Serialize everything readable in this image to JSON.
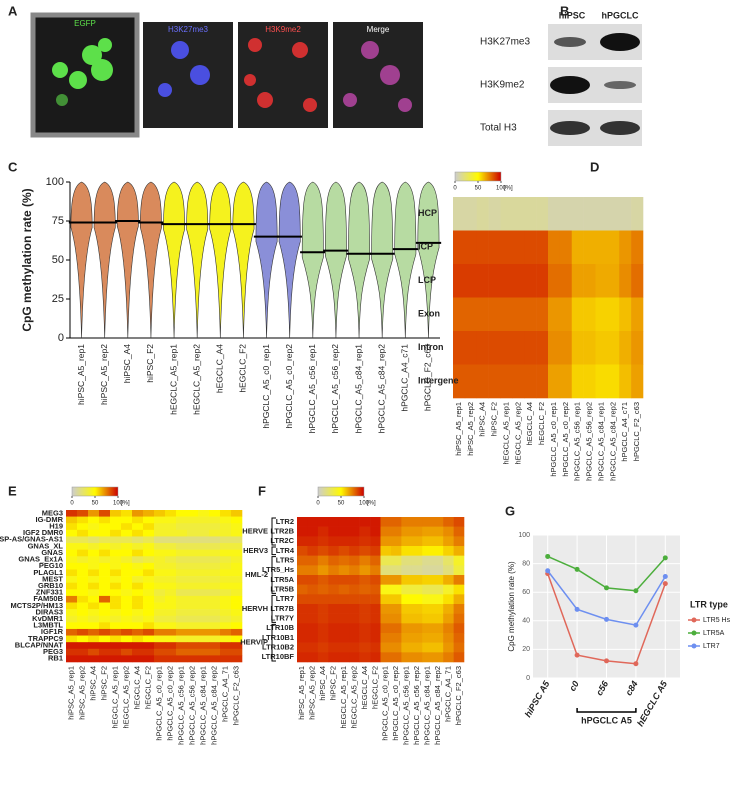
{
  "panel_labels": [
    "A",
    "B",
    "C",
    "D",
    "E",
    "F",
    "G"
  ],
  "image_panel": {
    "labels": [
      "EGFP",
      "H3K27me3",
      "H3K9me2",
      "Merge"
    ]
  },
  "blot_panel": {
    "columns": [
      "hiPSC",
      "hPGCLC"
    ],
    "rows": [
      "H3K27me3",
      "H3K9me2",
      "Total H3"
    ]
  },
  "chart_data": [
    {
      "type": "violin",
      "y_label": "CpG methylation rate (%)",
      "categories": [
        "hiPSC_A5_rep1",
        "hiPSC_A5_rep2",
        "hiPSC_A4",
        "hiPSC_F2",
        "hEGCLC_A5_rep1",
        "hEGCLC_A5_rep2",
        "hEGCLC_A4",
        "hEGCLC_F2",
        "hPGCLC_A5_c0_rep1",
        "hPGCLC_A5_c0_rep2",
        "hPGCLC_A5_c56_rep1",
        "hPGCLC_A5_c56_rep2",
        "hPGCLC_A5_c84_rep1",
        "hPGCLC_A5_c84_rep2",
        "hPGCLC_A4_c71",
        "hPGCLC_F2_c63"
      ],
      "values": [
        74,
        74,
        75,
        74,
        73,
        73,
        73,
        73,
        65,
        65,
        55,
        56,
        54,
        54,
        57,
        61
      ],
      "colors": [
        "#d98a5c",
        "#d98a5c",
        "#d98a5c",
        "#d98a5c",
        "#f5f21e",
        "#f5f21e",
        "#f5f21e",
        "#f5f21e",
        "#8a8fd8",
        "#8a8fd8",
        "#b7dba2",
        "#b7dba2",
        "#b7dba2",
        "#b7dba2",
        "#b7dba2",
        "#b7dba2"
      ],
      "ylim": [
        0,
        100
      ],
      "yticks": [
        0,
        25,
        50,
        75,
        100
      ]
    },
    {
      "type": "heatmap",
      "colorbar_ticks": [
        0,
        50,
        100
      ],
      "colorbar_unit": "[%]",
      "rows": [
        "HCP",
        "ICP",
        "LCP",
        "Exon",
        "Intron",
        "Intergene"
      ],
      "columns": [
        "hiPSC_A5_rep1",
        "hiPSC_A5_rep2",
        "hiPSC_A4",
        "hiPSC_F2",
        "hEGCLC_A5_rep1",
        "hEGCLC_A5_rep2",
        "hEGCLC_A4",
        "hEGCLC_F2",
        "hPGCLC_A5_c0_rep1",
        "hPGCLC_A5_c0_rep2",
        "hPGCLC_A5_c56_rep1",
        "hPGCLC_A5_c56_rep2",
        "hPGCLC_A5_c84_rep1",
        "hPGCLC_A5_c84_rep2",
        "hPGCLC_A4_c71",
        "hPGCLC_F2_c63"
      ],
      "values": [
        [
          10,
          10,
          12,
          10,
          12,
          12,
          12,
          12,
          8,
          8,
          8,
          8,
          8,
          8,
          8,
          10
        ],
        [
          85,
          85,
          85,
          85,
          85,
          85,
          85,
          85,
          75,
          75,
          65,
          65,
          65,
          65,
          70,
          75
        ],
        [
          88,
          88,
          88,
          88,
          88,
          88,
          88,
          88,
          78,
          78,
          68,
          68,
          66,
          66,
          72,
          78
        ],
        [
          80,
          80,
          80,
          80,
          80,
          80,
          80,
          80,
          70,
          70,
          60,
          60,
          58,
          58,
          62,
          68
        ],
        [
          85,
          85,
          85,
          85,
          85,
          85,
          85,
          85,
          72,
          72,
          62,
          62,
          60,
          60,
          65,
          70
        ],
        [
          82,
          82,
          82,
          82,
          82,
          82,
          82,
          82,
          68,
          68,
          58,
          58,
          56,
          56,
          62,
          68
        ]
      ]
    },
    {
      "type": "heatmap",
      "colorbar_ticks": [
        0,
        50,
        100
      ],
      "colorbar_unit": "[%]",
      "rows": [
        "MEG3",
        "IG-DMR",
        "H19",
        "IGF2 DMR0",
        "NESP-AS/GNAS-AS1",
        "GNAS_XL",
        "GNAS",
        "GNAS_Ex1A",
        "PEG10",
        "PLAGL1",
        "MEST",
        "GRB10",
        "ZNF331",
        "FAM50B",
        "MCTS2P/HM13",
        "DIRAS3",
        "KvDMR1",
        "L3MBTL",
        "IGF1R",
        "TRAPPC9",
        "BLCAP/NNAT",
        "PEG3",
        "RB1"
      ],
      "columns": [
        "hiPSC_A5_rep1",
        "hiPSC_A5_rep2",
        "hiPSC_A4",
        "hiPSC_F2",
        "hEGCLC_A5_rep1",
        "hEGCLC_A5_rep2",
        "hEGCLC_A4",
        "hEGCLC_F2",
        "hPGCLC_A5_c0_rep1",
        "hPGCLC_A5_c0_rep2",
        "hPGCLC_A5_c56_rep1",
        "hPGCLC_A5_c56_rep2",
        "hPGCLC_A5_c84_rep1",
        "hPGCLC_A5_c84_rep2",
        "hPGCLC_A4_71",
        "hPGCLC_F2_c63"
      ],
      "values": [
        [
          90,
          85,
          70,
          85,
          60,
          55,
          70,
          65,
          60,
          55,
          50,
          50,
          45,
          50,
          55,
          60
        ],
        [
          60,
          55,
          50,
          55,
          50,
          50,
          55,
          50,
          45,
          45,
          40,
          40,
          40,
          40,
          45,
          50
        ],
        [
          55,
          50,
          45,
          50,
          50,
          55,
          50,
          55,
          40,
          40,
          35,
          35,
          35,
          35,
          40,
          45
        ],
        [
          50,
          55,
          50,
          50,
          55,
          50,
          55,
          50,
          40,
          40,
          40,
          35,
          35,
          40,
          40,
          45
        ],
        [
          30,
          30,
          25,
          30,
          30,
          30,
          25,
          30,
          20,
          20,
          20,
          20,
          20,
          20,
          25,
          25
        ],
        [
          45,
          45,
          40,
          45,
          40,
          45,
          40,
          45,
          35,
          35,
          30,
          30,
          30,
          30,
          35,
          35
        ],
        [
          50,
          55,
          50,
          55,
          50,
          50,
          55,
          50,
          45,
          45,
          40,
          40,
          40,
          40,
          45,
          45
        ],
        [
          45,
          40,
          45,
          40,
          45,
          40,
          30,
          35,
          40,
          35,
          30,
          30,
          30,
          30,
          35,
          40
        ],
        [
          50,
          50,
          45,
          50,
          45,
          50,
          45,
          50,
          40,
          40,
          35,
          35,
          35,
          35,
          40,
          45
        ],
        [
          55,
          50,
          55,
          50,
          55,
          50,
          50,
          55,
          45,
          45,
          40,
          40,
          40,
          40,
          45,
          45
        ],
        [
          45,
          50,
          45,
          50,
          45,
          50,
          40,
          45,
          40,
          40,
          35,
          35,
          35,
          35,
          40,
          40
        ],
        [
          55,
          50,
          55,
          50,
          55,
          50,
          55,
          50,
          45,
          45,
          40,
          40,
          40,
          40,
          45,
          45
        ],
        [
          50,
          50,
          45,
          50,
          50,
          45,
          50,
          45,
          35,
          40,
          30,
          30,
          30,
          30,
          35,
          40
        ],
        [
          75,
          55,
          50,
          80,
          55,
          50,
          55,
          50,
          40,
          45,
          40,
          40,
          40,
          40,
          45,
          50
        ],
        [
          55,
          50,
          55,
          50,
          55,
          50,
          55,
          50,
          45,
          45,
          40,
          40,
          40,
          40,
          45,
          50
        ],
        [
          45,
          50,
          45,
          50,
          45,
          50,
          45,
          50,
          40,
          40,
          35,
          35,
          35,
          35,
          40,
          45
        ],
        [
          40,
          45,
          40,
          45,
          40,
          45,
          40,
          45,
          35,
          35,
          30,
          30,
          30,
          30,
          35,
          40
        ],
        [
          50,
          50,
          50,
          55,
          50,
          50,
          50,
          55,
          45,
          45,
          40,
          40,
          40,
          40,
          45,
          50
        ],
        [
          80,
          85,
          80,
          85,
          80,
          85,
          80,
          85,
          75,
          75,
          70,
          70,
          70,
          70,
          75,
          80
        ],
        [
          55,
          50,
          55,
          50,
          55,
          50,
          55,
          50,
          45,
          45,
          40,
          40,
          40,
          40,
          45,
          50
        ],
        [
          95,
          95,
          95,
          95,
          95,
          95,
          95,
          95,
          90,
          90,
          85,
          85,
          85,
          85,
          90,
          90
        ],
        [
          90,
          90,
          85,
          90,
          90,
          85,
          90,
          90,
          85,
          85,
          80,
          80,
          80,
          80,
          85,
          85
        ],
        [
          95,
          95,
          95,
          95,
          95,
          95,
          95,
          95,
          90,
          90,
          90,
          90,
          90,
          90,
          90,
          90
        ]
      ]
    },
    {
      "type": "heatmap",
      "colorbar_ticks": [
        0,
        50,
        100
      ],
      "colorbar_unit": "[%]",
      "rows": [
        "LTR2",
        "LTR2B",
        "LTR2C",
        "LTR4",
        "LTR5",
        "LTR5_Hs",
        "LTR5A",
        "LTR5B",
        "LTR7",
        "LTR7B",
        "LTR7Y",
        "LTR10B",
        "LTR10B1",
        "LTR10B2",
        "LTR10BF"
      ],
      "row_groups": [
        "HERVE",
        "HERVE",
        "HERVE",
        "HERV3",
        "HML-2",
        "HML-2",
        "HML-2",
        "HML-2",
        "HERVH",
        "HERVH",
        "HERVH",
        "HERVIP",
        "HERVIP",
        "HERVIP",
        "HERVIP"
      ],
      "columns": [
        "hiPSC_A5_rep1",
        "hiPSC_A5_rep2",
        "hiPSC_A4",
        "hiPSC_F2",
        "hEGCLC_A5_rep1",
        "hEGCLC_A5_rep2",
        "hEGCLC_A4",
        "hEGCLC_F2",
        "hPGCLC_A5_c0_rep1",
        "hPGCLC_A5_c0_rep2",
        "hPGCLC_A5_c56_rep1",
        "hPGCLC_A5_c56_rep2",
        "hPGCLC_A5_c84_rep1",
        "hPGCLC_A5_c84_rep2",
        "hPGCLC_A4_71",
        "hPGCLC_F2_c63"
      ],
      "values": [
        [
          95,
          95,
          95,
          95,
          95,
          95,
          95,
          95,
          80,
          80,
          75,
          75,
          75,
          75,
          80,
          85
        ],
        [
          95,
          95,
          92,
          95,
          95,
          95,
          92,
          95,
          75,
          75,
          70,
          70,
          68,
          68,
          72,
          80
        ],
        [
          92,
          92,
          90,
          92,
          92,
          92,
          90,
          92,
          70,
          70,
          65,
          65,
          62,
          62,
          68,
          75
        ],
        [
          85,
          88,
          85,
          88,
          85,
          88,
          85,
          88,
          60,
          62,
          55,
          55,
          52,
          52,
          58,
          65
        ],
        [
          80,
          80,
          75,
          80,
          78,
          80,
          75,
          80,
          30,
          30,
          20,
          20,
          15,
          15,
          25,
          40
        ],
        [
          75,
          75,
          70,
          75,
          72,
          75,
          70,
          75,
          20,
          20,
          15,
          15,
          12,
          12,
          20,
          35
        ],
        [
          85,
          85,
          82,
          85,
          85,
          85,
          82,
          85,
          70,
          70,
          60,
          60,
          58,
          58,
          65,
          75
        ],
        [
          80,
          82,
          80,
          82,
          80,
          82,
          80,
          82,
          45,
          45,
          35,
          35,
          30,
          30,
          40,
          55
        ],
        [
          85,
          85,
          85,
          85,
          85,
          85,
          85,
          85,
          60,
          60,
          50,
          50,
          45,
          45,
          55,
          65
        ],
        [
          90,
          90,
          88,
          90,
          90,
          90,
          88,
          90,
          70,
          70,
          60,
          60,
          58,
          58,
          65,
          75
        ],
        [
          90,
          90,
          88,
          90,
          90,
          90,
          88,
          90,
          72,
          72,
          62,
          62,
          60,
          60,
          68,
          78
        ],
        [
          92,
          92,
          90,
          92,
          92,
          92,
          90,
          92,
          78,
          78,
          70,
          70,
          68,
          68,
          74,
          82
        ],
        [
          92,
          92,
          90,
          92,
          92,
          92,
          90,
          92,
          75,
          75,
          68,
          68,
          66,
          66,
          72,
          80
        ],
        [
          90,
          90,
          88,
          90,
          90,
          90,
          88,
          90,
          72,
          72,
          65,
          65,
          62,
          62,
          70,
          78
        ],
        [
          92,
          92,
          90,
          92,
          92,
          92,
          90,
          92,
          78,
          78,
          72,
          72,
          70,
          70,
          75,
          82
        ]
      ]
    },
    {
      "type": "line",
      "y_label": "CpG methylation rate (%)",
      "legend_title": "LTR type",
      "categories": [
        "hiPSC A5",
        "c0",
        "c56",
        "c84",
        "hEGCLC A5"
      ],
      "bracket_label": "hPGCLC A5",
      "series": [
        {
          "name": "LTR5 Hs",
          "color": "#e0685a",
          "values": [
            73,
            16,
            12,
            10,
            66
          ]
        },
        {
          "name": "LTR5A",
          "color": "#4cae3c",
          "values": [
            85,
            76,
            63,
            61,
            84
          ]
        },
        {
          "name": "LTR7",
          "color": "#6d8ff0",
          "values": [
            75,
            48,
            41,
            37,
            71
          ]
        }
      ],
      "ylim": [
        0,
        100
      ],
      "yticks": [
        0,
        20,
        40,
        60,
        80,
        100
      ],
      "grid": true
    }
  ]
}
